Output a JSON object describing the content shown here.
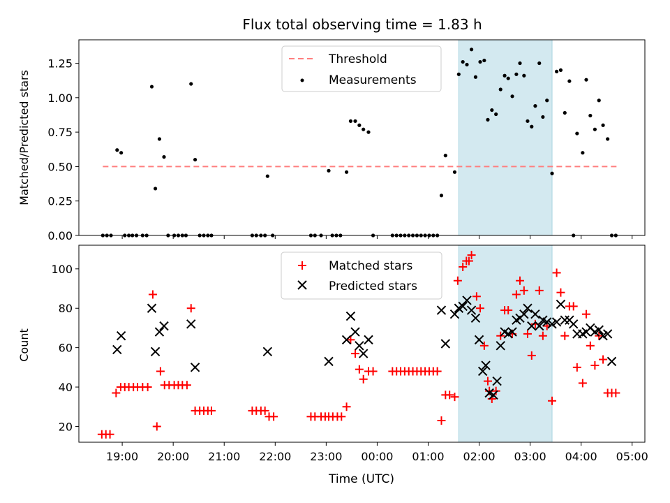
{
  "title": "Flux total observing time = 1.83 h",
  "shaded_interval": {
    "start_h": 1.6,
    "end_h": 3.43,
    "color": "#d3e9f0"
  },
  "x_axis": {
    "label": "Time (UTC)",
    "range_h": [
      -5.85,
      5.25
    ],
    "ticks": [
      {
        "h": -5,
        "label": "19:00"
      },
      {
        "h": -4,
        "label": "20:00"
      },
      {
        "h": -3,
        "label": "21:00"
      },
      {
        "h": -2,
        "label": "22:00"
      },
      {
        "h": -1,
        "label": "23:00"
      },
      {
        "h": 0,
        "label": "00:00"
      },
      {
        "h": 1,
        "label": "01:00"
      },
      {
        "h": 2,
        "label": "02:00"
      },
      {
        "h": 3,
        "label": "03:00"
      },
      {
        "h": 4,
        "label": "04:00"
      },
      {
        "h": 5,
        "label": "05:00"
      }
    ]
  },
  "chart_data": [
    {
      "type": "scatter",
      "panel": "top",
      "ylabel": "Matched/Predicted stars",
      "ylim": [
        0,
        1.42
      ],
      "yticks": [
        "0.00",
        "0.25",
        "0.50",
        "0.75",
        "1.00",
        "1.25"
      ],
      "legend": {
        "position": "top-center",
        "entries": [
          "Threshold",
          "Measurements"
        ]
      },
      "series": [
        {
          "name": "Threshold",
          "style": "dashed-line",
          "color": "#ff7f7f",
          "y": 0.5,
          "x_range_h": [
            -5.38,
            4.75
          ]
        },
        {
          "name": "Measurements",
          "style": "dot",
          "color": "#000000",
          "points": [
            [
              -5.38,
              0
            ],
            [
              -5.3,
              0
            ],
            [
              -5.22,
              0
            ],
            [
              -5.1,
              0.62
            ],
            [
              -5.02,
              0.6
            ],
            [
              -4.95,
              0
            ],
            [
              -4.87,
              0
            ],
            [
              -4.8,
              0
            ],
            [
              -4.72,
              0
            ],
            [
              -4.6,
              0
            ],
            [
              -4.52,
              0
            ],
            [
              -4.42,
              1.08
            ],
            [
              -4.35,
              0.34
            ],
            [
              -4.27,
              0.7
            ],
            [
              -4.18,
              0.57
            ],
            [
              -4.1,
              0
            ],
            [
              -3.98,
              0
            ],
            [
              -3.9,
              0
            ],
            [
              -3.82,
              0
            ],
            [
              -3.75,
              0
            ],
            [
              -3.65,
              1.1
            ],
            [
              -3.57,
              0.55
            ],
            [
              -3.48,
              0
            ],
            [
              -3.4,
              0
            ],
            [
              -3.32,
              0
            ],
            [
              -3.25,
              0
            ],
            [
              -2.45,
              0
            ],
            [
              -2.37,
              0
            ],
            [
              -2.28,
              0
            ],
            [
              -2.2,
              0
            ],
            [
              -2.15,
              0.43
            ],
            [
              -2.05,
              0
            ],
            [
              -1.3,
              0
            ],
            [
              -1.22,
              0
            ],
            [
              -1.1,
              0
            ],
            [
              -0.95,
              0.47
            ],
            [
              -0.88,
              0
            ],
            [
              -0.8,
              0
            ],
            [
              -0.72,
              0
            ],
            [
              -0.6,
              0.46
            ],
            [
              -0.52,
              0.83
            ],
            [
              -0.43,
              0.83
            ],
            [
              -0.35,
              0.8
            ],
            [
              -0.27,
              0.77
            ],
            [
              -0.17,
              0.75
            ],
            [
              -0.08,
              0
            ],
            [
              0.3,
              0
            ],
            [
              0.38,
              0
            ],
            [
              0.46,
              0
            ],
            [
              0.54,
              0
            ],
            [
              0.62,
              0
            ],
            [
              0.7,
              0
            ],
            [
              0.78,
              0
            ],
            [
              0.86,
              0
            ],
            [
              0.94,
              0
            ],
            [
              1.02,
              0
            ],
            [
              1.1,
              0
            ],
            [
              1.18,
              0
            ],
            [
              1.26,
              0.29
            ],
            [
              1.34,
              0.58
            ],
            [
              1.52,
              0.46
            ],
            [
              1.6,
              1.17
            ],
            [
              1.68,
              1.26
            ],
            [
              1.76,
              1.24
            ],
            [
              1.85,
              1.35
            ],
            [
              1.93,
              1.15
            ],
            [
              2.02,
              1.26
            ],
            [
              2.1,
              1.27
            ],
            [
              2.17,
              0.84
            ],
            [
              2.25,
              0.91
            ],
            [
              2.33,
              0.88
            ],
            [
              2.42,
              1.06
            ],
            [
              2.5,
              1.16
            ],
            [
              2.57,
              1.14
            ],
            [
              2.65,
              1.01
            ],
            [
              2.73,
              1.17
            ],
            [
              2.8,
              1.25
            ],
            [
              2.88,
              1.16
            ],
            [
              2.95,
              0.83
            ],
            [
              3.03,
              0.79
            ],
            [
              3.1,
              0.94
            ],
            [
              3.18,
              1.25
            ],
            [
              3.25,
              0.86
            ],
            [
              3.33,
              0.98
            ],
            [
              3.43,
              0.45
            ],
            [
              3.52,
              1.19
            ],
            [
              3.6,
              1.2
            ],
            [
              3.68,
              0.89
            ],
            [
              3.77,
              1.12
            ],
            [
              3.85,
              0
            ],
            [
              3.92,
              0.74
            ],
            [
              4.03,
              0.6
            ],
            [
              4.1,
              1.13
            ],
            [
              4.18,
              0.87
            ],
            [
              4.27,
              0.77
            ],
            [
              4.35,
              0.98
            ],
            [
              4.43,
              0.8
            ],
            [
              4.52,
              0.7
            ],
            [
              4.6,
              0
            ],
            [
              4.68,
              0
            ]
          ]
        }
      ]
    },
    {
      "type": "scatter",
      "panel": "bottom",
      "ylabel": "Count",
      "ylim": [
        12,
        112
      ],
      "yticks": [
        20,
        40,
        60,
        80,
        100
      ],
      "legend": {
        "position": "top-center",
        "entries": [
          "Matched stars",
          "Predicted stars"
        ]
      },
      "series": [
        {
          "name": "Matched stars",
          "marker": "plus",
          "color": "#ff0000",
          "points": [
            [
              -5.4,
              16
            ],
            [
              -5.32,
              16
            ],
            [
              -5.24,
              16
            ],
            [
              -5.12,
              37
            ],
            [
              -5.03,
              40
            ],
            [
              -4.95,
              40
            ],
            [
              -4.87,
              40
            ],
            [
              -4.78,
              40
            ],
            [
              -4.7,
              40
            ],
            [
              -4.6,
              40
            ],
            [
              -4.5,
              40
            ],
            [
              -4.4,
              87
            ],
            [
              -4.32,
              20
            ],
            [
              -4.25,
              48
            ],
            [
              -4.17,
              41
            ],
            [
              -4.08,
              41
            ],
            [
              -3.98,
              41
            ],
            [
              -3.9,
              41
            ],
            [
              -3.82,
              41
            ],
            [
              -3.73,
              41
            ],
            [
              -3.65,
              80
            ],
            [
              -3.57,
              28
            ],
            [
              -3.48,
              28
            ],
            [
              -3.4,
              28
            ],
            [
              -3.32,
              28
            ],
            [
              -3.25,
              28
            ],
            [
              -2.45,
              28
            ],
            [
              -2.37,
              28
            ],
            [
              -2.28,
              28
            ],
            [
              -2.2,
              28
            ],
            [
              -2.12,
              25
            ],
            [
              -2.03,
              25
            ],
            [
              -1.3,
              25
            ],
            [
              -1.22,
              25
            ],
            [
              -1.1,
              25
            ],
            [
              -1.02,
              25
            ],
            [
              -0.95,
              25
            ],
            [
              -0.87,
              25
            ],
            [
              -0.78,
              25
            ],
            [
              -0.7,
              25
            ],
            [
              -0.6,
              30
            ],
            [
              -0.52,
              64
            ],
            [
              -0.43,
              57
            ],
            [
              -0.35,
              49
            ],
            [
              -0.27,
              44
            ],
            [
              -0.17,
              48
            ],
            [
              -0.08,
              48
            ],
            [
              0.3,
              48
            ],
            [
              0.38,
              48
            ],
            [
              0.46,
              48
            ],
            [
              0.54,
              48
            ],
            [
              0.62,
              48
            ],
            [
              0.7,
              48
            ],
            [
              0.78,
              48
            ],
            [
              0.86,
              48
            ],
            [
              0.94,
              48
            ],
            [
              1.02,
              48
            ],
            [
              1.1,
              48
            ],
            [
              1.18,
              48
            ],
            [
              1.26,
              23
            ],
            [
              1.34,
              36
            ],
            [
              1.42,
              36
            ],
            [
              1.52,
              35
            ],
            [
              1.58,
              94
            ],
            [
              1.68,
              101
            ],
            [
              1.75,
              104
            ],
            [
              1.8,
              104
            ],
            [
              1.85,
              107
            ],
            [
              1.95,
              86
            ],
            [
              2.02,
              80
            ],
            [
              2.1,
              61
            ],
            [
              2.17,
              43
            ],
            [
              2.2,
              38
            ],
            [
              2.25,
              34
            ],
            [
              2.33,
              38
            ],
            [
              2.42,
              66
            ],
            [
              2.5,
              79
            ],
            [
              2.57,
              79
            ],
            [
              2.65,
              67
            ],
            [
              2.73,
              87
            ],
            [
              2.8,
              94
            ],
            [
              2.88,
              89
            ],
            [
              2.95,
              67
            ],
            [
              3.03,
              56
            ],
            [
              3.1,
              72
            ],
            [
              3.18,
              89
            ],
            [
              3.25,
              66
            ],
            [
              3.33,
              71
            ],
            [
              3.43,
              33
            ],
            [
              3.52,
              98
            ],
            [
              3.6,
              88
            ],
            [
              3.68,
              66
            ],
            [
              3.77,
              81
            ],
            [
              3.85,
              81
            ],
            [
              3.92,
              50
            ],
            [
              4.03,
              42
            ],
            [
              4.1,
              77
            ],
            [
              4.18,
              61
            ],
            [
              4.27,
              51
            ],
            [
              4.35,
              66
            ],
            [
              4.43,
              54
            ],
            [
              4.52,
              37
            ],
            [
              4.6,
              37
            ],
            [
              4.68,
              37
            ]
          ]
        },
        {
          "name": "Predicted stars",
          "marker": "x",
          "color": "#000000",
          "points": [
            [
              -5.1,
              59
            ],
            [
              -5.02,
              66
            ],
            [
              -4.42,
              80
            ],
            [
              -4.35,
              58
            ],
            [
              -4.27,
              68
            ],
            [
              -4.18,
              71
            ],
            [
              -3.65,
              72
            ],
            [
              -3.57,
              50
            ],
            [
              -2.15,
              58
            ],
            [
              -0.95,
              53
            ],
            [
              -0.6,
              64
            ],
            [
              -0.52,
              76
            ],
            [
              -0.43,
              68
            ],
            [
              -0.35,
              61
            ],
            [
              -0.27,
              57
            ],
            [
              -0.17,
              64
            ],
            [
              1.26,
              79
            ],
            [
              1.34,
              62
            ],
            [
              1.52,
              77
            ],
            [
              1.6,
              80
            ],
            [
              1.68,
              81
            ],
            [
              1.76,
              84
            ],
            [
              1.85,
              79
            ],
            [
              1.93,
              75
            ],
            [
              2.0,
              64
            ],
            [
              2.07,
              48
            ],
            [
              2.13,
              51
            ],
            [
              2.2,
              37
            ],
            [
              2.28,
              36
            ],
            [
              2.35,
              43
            ],
            [
              2.42,
              61
            ],
            [
              2.5,
              68
            ],
            [
              2.57,
              67
            ],
            [
              2.65,
              68
            ],
            [
              2.73,
              74
            ],
            [
              2.8,
              75
            ],
            [
              2.88,
              77
            ],
            [
              2.95,
              80
            ],
            [
              3.03,
              71
            ],
            [
              3.1,
              77
            ],
            [
              3.18,
              71
            ],
            [
              3.25,
              74
            ],
            [
              3.33,
              73
            ],
            [
              3.43,
              72
            ],
            [
              3.52,
              73
            ],
            [
              3.6,
              82
            ],
            [
              3.68,
              74
            ],
            [
              3.77,
              74
            ],
            [
              3.85,
              72
            ],
            [
              3.92,
              67
            ],
            [
              4.03,
              67
            ],
            [
              4.1,
              68
            ],
            [
              4.18,
              70
            ],
            [
              4.27,
              68
            ],
            [
              4.35,
              69
            ],
            [
              4.43,
              66
            ],
            [
              4.52,
              67
            ],
            [
              4.6,
              53
            ]
          ]
        }
      ]
    }
  ]
}
